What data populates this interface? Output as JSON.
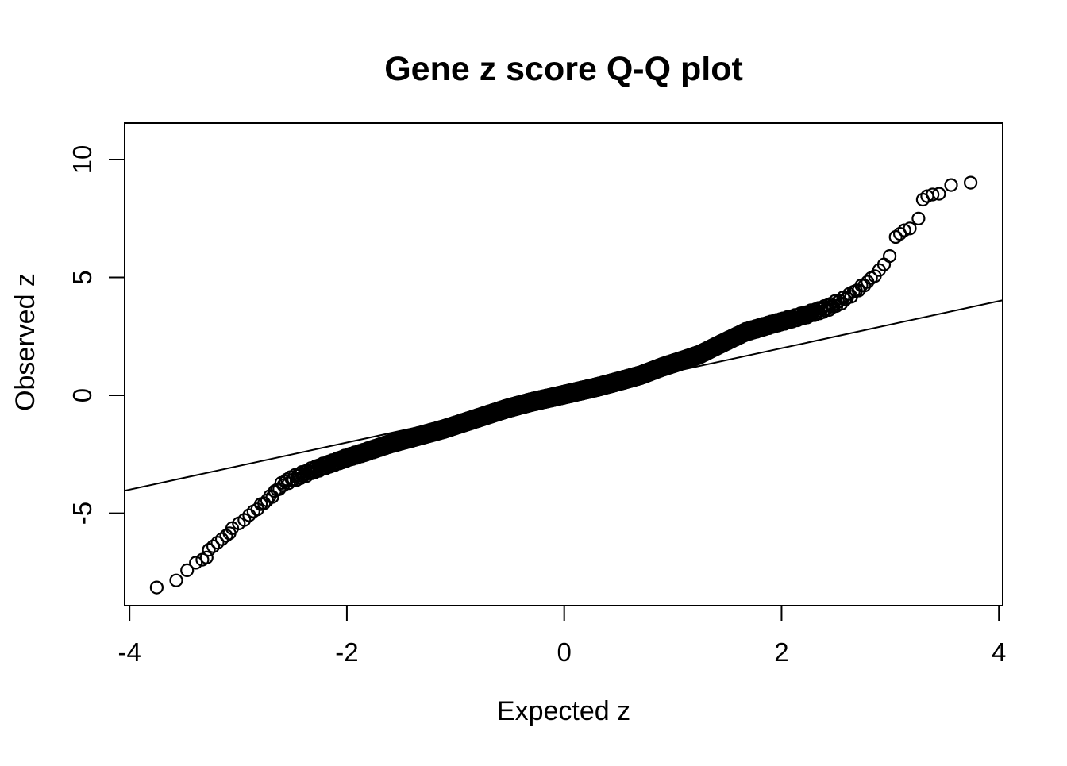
{
  "title": "Gene z score Q-Q plot",
  "chart_data": {
    "type": "scatter",
    "title": "Gene z score Q-Q plot",
    "xlabel": "Expected z",
    "ylabel": "Observed z",
    "x_ticks": [
      -4,
      -2,
      0,
      2,
      4
    ],
    "y_ticks": [
      -5,
      0,
      5,
      10
    ],
    "xlim": [
      -4.045,
      4.035
    ],
    "ylim": [
      -8.92,
      11.55
    ],
    "grid": false,
    "legend": "none",
    "marker": "open-circle",
    "marker_color": "#000000",
    "background_color": "#ffffff",
    "reference_line": {
      "slope": 1,
      "intercept": 0,
      "color": "#000000"
    },
    "n_points": 4000,
    "qq_curve_anchors": [
      [
        -3.06,
        -5.65
      ],
      [
        -3.0,
        -5.45
      ],
      [
        -2.95,
        -5.3
      ],
      [
        -2.9,
        -5.1
      ],
      [
        -2.8,
        -4.7
      ],
      [
        -2.7,
        -4.3
      ],
      [
        -2.6,
        -3.8
      ],
      [
        -2.57,
        -3.67
      ],
      [
        -2.45,
        -3.45
      ],
      [
        -2.3,
        -3.15
      ],
      [
        -2.15,
        -2.9
      ],
      [
        -2.0,
        -2.65
      ],
      [
        -1.84,
        -2.42
      ],
      [
        -1.6,
        -2.05
      ],
      [
        -1.4,
        -1.8
      ],
      [
        -1.2,
        -1.55
      ],
      [
        -1.1,
        -1.42
      ],
      [
        -0.9,
        -1.12
      ],
      [
        -0.7,
        -0.82
      ],
      [
        -0.52,
        -0.55
      ],
      [
        -0.3,
        -0.28
      ],
      [
        0.0,
        0.03
      ],
      [
        0.3,
        0.35
      ],
      [
        0.52,
        0.62
      ],
      [
        0.7,
        0.85
      ],
      [
        0.9,
        1.2
      ],
      [
        1.1,
        1.5
      ],
      [
        1.24,
        1.72
      ],
      [
        1.45,
        2.2
      ],
      [
        1.67,
        2.69
      ],
      [
        1.9,
        3.0
      ],
      [
        2.1,
        3.25
      ],
      [
        2.25,
        3.45
      ],
      [
        2.4,
        3.67
      ],
      [
        2.55,
        4.0
      ],
      [
        2.65,
        4.3
      ],
      [
        2.75,
        4.65
      ],
      [
        2.85,
        5.05
      ],
      [
        2.92,
        5.4
      ],
      [
        2.98,
        5.8
      ],
      [
        3.02,
        6.1
      ]
    ],
    "tail_points_low": [
      [
        -3.75,
        -8.15
      ],
      [
        -3.57,
        -7.85
      ],
      [
        -3.47,
        -7.42
      ],
      [
        -3.39,
        -7.1
      ],
      [
        -3.33,
        -6.97
      ],
      [
        -3.29,
        -6.88
      ],
      [
        -3.27,
        -6.55
      ],
      [
        -3.23,
        -6.4
      ],
      [
        -3.19,
        -6.25
      ],
      [
        -3.15,
        -6.1
      ],
      [
        -3.11,
        -5.95
      ],
      [
        -3.08,
        -5.85
      ]
    ],
    "tail_points_high": [
      [
        3.05,
        6.72
      ],
      [
        3.09,
        6.85
      ],
      [
        3.13,
        7.0
      ],
      [
        3.18,
        7.08
      ],
      [
        3.26,
        7.5
      ],
      [
        3.3,
        8.3
      ],
      [
        3.34,
        8.45
      ],
      [
        3.39,
        8.52
      ],
      [
        3.45,
        8.55
      ],
      [
        3.56,
        8.92
      ],
      [
        3.74,
        9.02
      ]
    ]
  }
}
